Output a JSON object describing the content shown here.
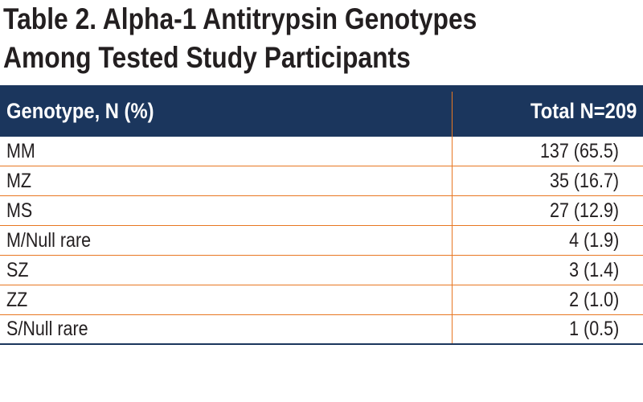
{
  "title": {
    "line1": "Table 2. Alpha-1 Antitrypsin Genotypes",
    "line2": "Among Tested Study Participants"
  },
  "table": {
    "headers": [
      "Genotype, N (%)",
      "Total N=209"
    ],
    "rows": [
      {
        "genotype": "MM",
        "total": "137 (65.5)"
      },
      {
        "genotype": "MZ",
        "total": "35 (16.7)"
      },
      {
        "genotype": "MS",
        "total": "27 (12.9)"
      },
      {
        "genotype": "M/Null rare",
        "total": "4 (1.9)"
      },
      {
        "genotype": "SZ",
        "total": "3 (1.4)"
      },
      {
        "genotype": "ZZ",
        "total": "2 (1.0)"
      },
      {
        "genotype": "S/Null rare",
        "total": "1 (0.5)"
      }
    ]
  },
  "colors": {
    "header_bg": "#1b365d",
    "rule": "#e87722",
    "text": "#231f20"
  }
}
